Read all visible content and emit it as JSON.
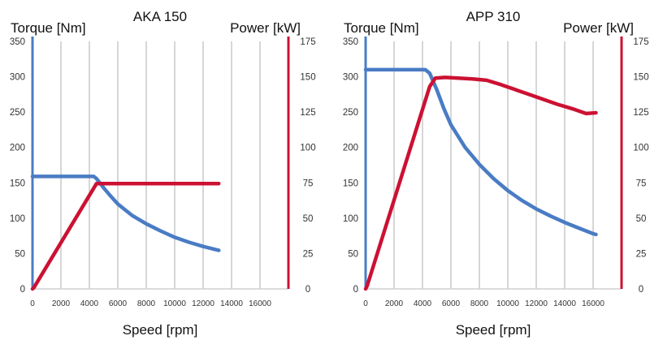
{
  "chart_data": [
    {
      "type": "line",
      "title": "AKA 150",
      "xlabel": "Speed [rpm]",
      "ylabel_left": "Torque [Nm]",
      "ylabel_right": "Power [kW]",
      "xlim": [
        0,
        18000
      ],
      "ylim_left": [
        0,
        350
      ],
      "ylim_right": [
        0,
        175
      ],
      "x_ticks": [
        "0",
        "2000",
        "4000",
        "6000",
        "8000",
        "10000",
        "12000",
        "14000",
        "16000"
      ],
      "y_left_ticks": [
        "0",
        "50",
        "100",
        "150",
        "200",
        "250",
        "300",
        "350"
      ],
      "y_right_ticks": [
        "0",
        "25",
        "50",
        "75",
        "100",
        "125",
        "150",
        "175"
      ],
      "grid": "vertical",
      "series": [
        {
          "axis": "left",
          "color": "#4a7cc4",
          "points": [
            [
              0,
              159
            ],
            [
              4300,
              159
            ],
            [
              4500,
              156
            ],
            [
              5000,
              143
            ],
            [
              5500,
              131
            ],
            [
              6000,
              120
            ],
            [
              7000,
              104
            ],
            [
              8000,
              92
            ],
            [
              9000,
              82
            ],
            [
              10000,
              73
            ],
            [
              11000,
              66
            ],
            [
              12000,
              60
            ],
            [
              13000,
              55
            ],
            [
              13100,
              54.5
            ]
          ]
        },
        {
          "axis": "right",
          "color": "#cc1133",
          "points": [
            [
              0,
              0
            ],
            [
              100,
              1
            ],
            [
              4500,
              74.5
            ],
            [
              13100,
              74.5
            ]
          ]
        }
      ]
    },
    {
      "type": "line",
      "title": "APP 310",
      "xlabel": "Speed [rpm]",
      "ylabel_left": "Torque [Nm]",
      "ylabel_right": "Power [kW]",
      "xlim": [
        0,
        18000
      ],
      "ylim_left": [
        0,
        350
      ],
      "ylim_right": [
        0,
        175
      ],
      "x_ticks": [
        "0",
        "2000",
        "4000",
        "6000",
        "8000",
        "10000",
        "12000",
        "14000",
        "16000"
      ],
      "y_left_ticks": [
        "0",
        "50",
        "100",
        "150",
        "200",
        "250",
        "300",
        "350"
      ],
      "y_right_ticks": [
        "0",
        "25",
        "50",
        "75",
        "100",
        "125",
        "150",
        "175"
      ],
      "grid": "vertical",
      "series": [
        {
          "axis": "left",
          "color": "#4a7cc4",
          "points": [
            [
              0,
              310
            ],
            [
              4200,
              310
            ],
            [
              4500,
              305
            ],
            [
              5000,
              282
            ],
            [
              5500,
              255
            ],
            [
              6000,
              232
            ],
            [
              7000,
              200
            ],
            [
              8000,
              176
            ],
            [
              9000,
              156
            ],
            [
              10000,
              139
            ],
            [
              11000,
              125
            ],
            [
              12000,
              113
            ],
            [
              13000,
              103
            ],
            [
              14000,
              94
            ],
            [
              15000,
              86
            ],
            [
              16000,
              78
            ],
            [
              16200,
              77
            ]
          ]
        },
        {
          "axis": "right",
          "color": "#cc1133",
          "points": [
            [
              0,
              0
            ],
            [
              100,
              2
            ],
            [
              4500,
              143
            ],
            [
              4900,
              149
            ],
            [
              5600,
              149.5
            ],
            [
              6500,
              149
            ],
            [
              7500,
              148.5
            ],
            [
              8500,
              147.5
            ],
            [
              9500,
              144.5
            ],
            [
              10500,
              141
            ],
            [
              11500,
              137.5
            ],
            [
              12500,
              134
            ],
            [
              13500,
              130.5
            ],
            [
              14500,
              127.5
            ],
            [
              15500,
              124
            ],
            [
              16200,
              124.5
            ]
          ]
        }
      ]
    }
  ]
}
